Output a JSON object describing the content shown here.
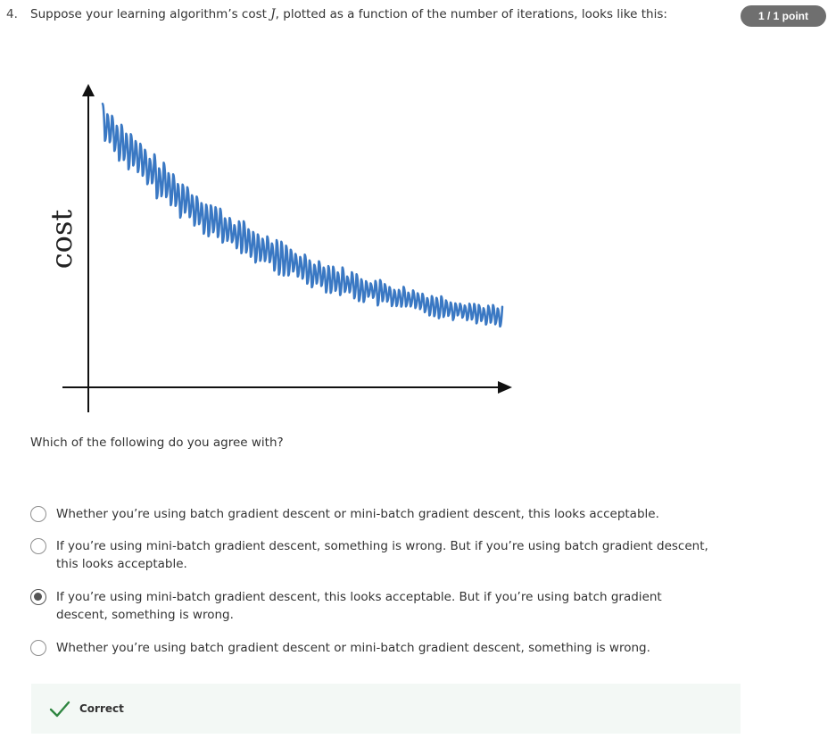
{
  "question": {
    "number": "4.",
    "text_before": "Suppose your learning algorithm’s cost ",
    "math": "J",
    "text_after": ", plotted as a function of the number of iterations, looks like this:",
    "points": "1 / 1 point"
  },
  "chart_data": {
    "type": "line",
    "ylabel": "cost",
    "xlabel": "",
    "series_color": "#3a78c3",
    "description": "noisy downward-trending cost curve"
  },
  "sub_question": "Which of the following do you agree with?",
  "options": [
    {
      "label": "Whether you’re using batch gradient descent or mini-batch gradient descent, this looks acceptable.",
      "selected": false
    },
    {
      "label": "If you’re using mini-batch gradient descent, something is wrong. But if you’re using batch gradient descent, this looks acceptable.",
      "selected": false
    },
    {
      "label": "If you’re using mini-batch gradient descent, this looks acceptable. But if you’re using batch gradient descent, something is wrong.",
      "selected": true
    },
    {
      "label": "Whether you’re using batch gradient descent or mini-batch gradient descent, something is wrong.",
      "selected": false
    }
  ],
  "feedback": {
    "icon": "check-icon",
    "label": "Correct",
    "color": "#2e8540"
  }
}
